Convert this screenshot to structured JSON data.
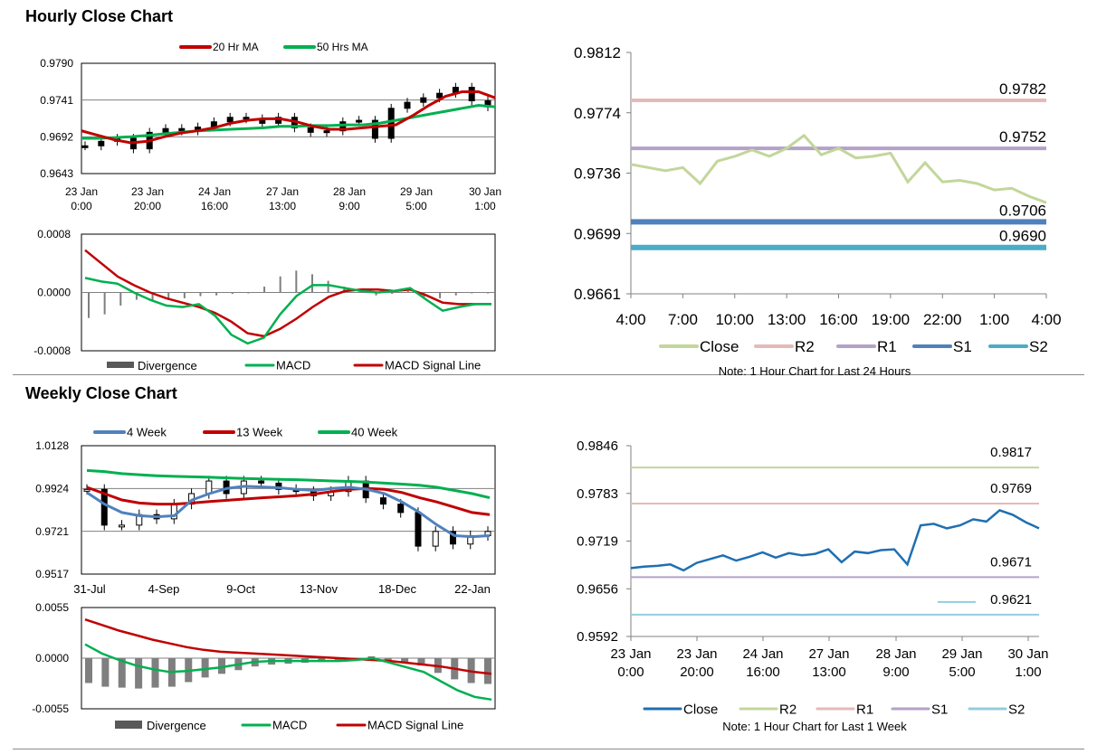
{
  "hourly": {
    "title": "Hourly Close Chart",
    "price_chart": {
      "type": "line",
      "legend": [
        {
          "label": "20 Hr MA",
          "color": "#c00000"
        },
        {
          "label": "50 Hrs MA",
          "color": "#00b050"
        }
      ],
      "ylim": [
        0.9643,
        0.979
      ],
      "yticks": [
        "0.9790",
        "0.9741",
        "0.9692",
        "0.9643"
      ],
      "xticks": [
        [
          "23 Jan",
          "0:00"
        ],
        [
          "23 Jan",
          "20:00"
        ],
        [
          "24 Jan",
          "16:00"
        ],
        [
          "27 Jan",
          "13:00"
        ],
        [
          "28 Jan",
          "9:00"
        ],
        [
          "29 Jan",
          "5:00"
        ],
        [
          "30 Jan",
          "1:00"
        ]
      ],
      "series": [
        {
          "name": "20 Hr MA",
          "color": "#c00000",
          "values": [
            0.97,
            0.9694,
            0.9688,
            0.9684,
            0.9686,
            0.9692,
            0.9697,
            0.97,
            0.9704,
            0.971,
            0.9714,
            0.9716,
            0.9716,
            0.9712,
            0.9706,
            0.9702,
            0.9702,
            0.9704,
            0.9706,
            0.9708,
            0.972,
            0.9734,
            0.9746,
            0.9752,
            0.9752,
            0.9744
          ]
        },
        {
          "name": "50 Hrs MA",
          "color": "#00b050",
          "values": [
            0.969,
            0.969,
            0.9691,
            0.9692,
            0.9694,
            0.9696,
            0.9698,
            0.97,
            0.9701,
            0.9702,
            0.9703,
            0.9704,
            0.9706,
            0.9706,
            0.9707,
            0.9707,
            0.9708,
            0.9708,
            0.971,
            0.9714,
            0.9718,
            0.9722,
            0.9726,
            0.973,
            0.9734,
            0.9732
          ]
        },
        {
          "name": "Price",
          "color": "#000000",
          "values": [
            0.968,
            0.9686,
            0.969,
            0.9676,
            0.9698,
            0.9703,
            0.97,
            0.9705,
            0.9712,
            0.9718,
            0.9716,
            0.971,
            0.9718,
            0.9704,
            0.9698,
            0.97,
            0.9712,
            0.9714,
            0.969,
            0.973,
            0.9738,
            0.9744,
            0.975,
            0.9758,
            0.974,
            0.9732
          ]
        }
      ]
    },
    "macd_chart": {
      "ylim": [
        -0.0008,
        0.0008
      ],
      "yticks": [
        "0.0008",
        "0.0000",
        "-0.0008"
      ],
      "legend": [
        {
          "label": "Divergence",
          "color": "#595959"
        },
        {
          "label": "MACD",
          "color": "#00b050"
        },
        {
          "label": "MACD Signal Line",
          "color": "#c00000"
        }
      ],
      "macd": [
        0.0002,
        0.00015,
        0.00012,
        0.0,
        -0.0001,
        -0.00018,
        -0.0002,
        -0.00016,
        -0.00032,
        -0.00058,
        -0.0007,
        -0.00062,
        -0.0003,
        -5e-05,
        0.0001,
        0.0001,
        6e-05,
        2e-05,
        0.0,
        2e-05,
        6e-05,
        -0.0001,
        -0.00025,
        -0.0002,
        -0.00016,
        -0.00016
      ],
      "signal": [
        0.00058,
        0.0004,
        0.00022,
        0.0001,
        0.0,
        -8e-05,
        -0.00014,
        -0.0002,
        -0.00028,
        -0.0004,
        -0.00056,
        -0.0006,
        -0.0005,
        -0.00036,
        -0.0002,
        -6e-05,
        2e-05,
        4e-05,
        4e-05,
        2e-05,
        4e-05,
        -4e-05,
        -0.00014,
        -0.00016,
        -0.00016,
        -0.00016
      ],
      "divergence": [
        -0.00035,
        -0.0003,
        -0.00018,
        -0.0001,
        -0.0001,
        -0.0001,
        -8e-05,
        -5e-05,
        -4e-05,
        -2e-05,
        0.0,
        8e-05,
        0.00022,
        0.0003,
        0.00025,
        0.00016,
        8e-05,
        2e-05,
        -4e-05,
        -2e-05,
        2e-05,
        -6e-05,
        -8e-05,
        -4e-05,
        -1e-05,
        -1e-05
      ]
    },
    "close_chart": {
      "type": "line",
      "ylim": [
        0.9661,
        0.9812
      ],
      "yticks": [
        "0.9812",
        "0.9774",
        "0.9736",
        "0.9699",
        "0.9661"
      ],
      "xticks": [
        "4:00",
        "7:00",
        "10:00",
        "13:00",
        "16:00",
        "19:00",
        "22:00",
        "1:00",
        "4:00"
      ],
      "close": [
        0.9742,
        0.974,
        0.9738,
        0.974,
        0.973,
        0.9744,
        0.9747,
        0.9751,
        0.9747,
        0.9752,
        0.976,
        0.9748,
        0.9752,
        0.9746,
        0.9747,
        0.9749,
        0.9731,
        0.9743,
        0.9731,
        0.9732,
        0.973,
        0.9726,
        0.9727,
        0.9722,
        0.9718
      ],
      "levels": [
        {
          "name": "R2",
          "value": 0.9782,
          "label": "0.9782",
          "color": "#e6b9b8",
          "width": 4
        },
        {
          "name": "R1",
          "value": 0.9752,
          "label": "0.9752",
          "color": "#b3a2c7",
          "width": 4
        },
        {
          "name": "S1",
          "value": 0.9706,
          "label": "0.9706",
          "color": "#4f81bd",
          "width": 6
        },
        {
          "name": "S2",
          "value": 0.969,
          "label": "0.9690",
          "color": "#4bacc6",
          "width": 6
        }
      ],
      "legend": [
        {
          "label": "Close",
          "color": "#c3d69b"
        },
        {
          "label": "R2",
          "color": "#e6b9b8"
        },
        {
          "label": "R1",
          "color": "#b3a2c7"
        },
        {
          "label": "S1",
          "color": "#4f81bd"
        },
        {
          "label": "S2",
          "color": "#4bacc6"
        }
      ],
      "note": "Note: 1 Hour Chart for Last 24 Hours"
    }
  },
  "weekly": {
    "title": "Weekly Close Chart",
    "price_chart": {
      "type": "line",
      "legend": [
        {
          "label": "4 Week",
          "color": "#4f81bd"
        },
        {
          "label": "13 Week",
          "color": "#c00000"
        },
        {
          "label": "40 Week",
          "color": "#00b050"
        }
      ],
      "ylim": [
        0.9517,
        1.0128
      ],
      "yticks": [
        "1.0128",
        "0.9924",
        "0.9721",
        "0.9517"
      ],
      "xticks": [
        "31-Jul",
        "4-Sep",
        "9-Oct",
        "13-Nov",
        "18-Dec",
        "22-Jan"
      ],
      "series": [
        {
          "name": "4 Week",
          "color": "#4f81bd",
          "values": [
            0.9905,
            0.985,
            0.981,
            0.9795,
            0.979,
            0.9795,
            0.987,
            0.99,
            0.9925,
            0.9935,
            0.9932,
            0.9928,
            0.992,
            0.9915,
            0.9925,
            0.993,
            0.992,
            0.99,
            0.986,
            0.981,
            0.975,
            0.97,
            0.9695,
            0.97
          ]
        },
        {
          "name": "13 Week",
          "color": "#c00000",
          "values": [
            0.993,
            0.99,
            0.987,
            0.9855,
            0.985,
            0.985,
            0.9855,
            0.9862,
            0.9868,
            0.9874,
            0.988,
            0.9885,
            0.989,
            0.9898,
            0.991,
            0.992,
            0.9925,
            0.992,
            0.9905,
            0.988,
            0.986,
            0.9835,
            0.981,
            0.98
          ]
        },
        {
          "name": "40 Week",
          "color": "#00b050",
          "values": [
            1.001,
            1.0005,
            0.9995,
            0.999,
            0.9985,
            0.9982,
            0.998,
            0.9978,
            0.9975,
            0.9972,
            0.997,
            0.9968,
            0.9966,
            0.9963,
            0.996,
            0.9958,
            0.9955,
            0.995,
            0.9945,
            0.994,
            0.993,
            0.9915,
            0.99,
            0.988
          ]
        },
        {
          "name": "Close",
          "color": "#000000",
          "values": [
            0.992,
            0.975,
            0.975,
            0.98,
            0.978,
            0.985,
            0.99,
            0.996,
            0.99,
            0.996,
            0.995,
            0.992,
            0.991,
            0.989,
            0.991,
            0.996,
            0.988,
            0.985,
            0.981,
            0.965,
            0.972,
            0.966,
            0.97,
            0.972
          ]
        }
      ]
    },
    "macd_chart": {
      "ylim": [
        -0.0055,
        0.0055
      ],
      "yticks": [
        "0.0055",
        "0.0000",
        "-0.0055"
      ],
      "legend": [
        {
          "label": "Divergence",
          "color": "#595959"
        },
        {
          "label": "MACD",
          "color": "#00b050"
        },
        {
          "label": "MACD Signal Line",
          "color": "#c00000"
        }
      ],
      "macd": [
        0.0015,
        0.0005,
        -0.0002,
        -0.0008,
        -0.0012,
        -0.0015,
        -0.0014,
        -0.0012,
        -0.001,
        -0.0007,
        -0.0004,
        -0.0003,
        -0.0003,
        -0.0003,
        -0.0003,
        -0.0003,
        -0.0002,
        0.0,
        -0.0005,
        -0.001,
        -0.0015,
        -0.0025,
        -0.0035,
        -0.0042,
        -0.0045
      ],
      "signal": [
        0.0042,
        0.0036,
        0.003,
        0.0025,
        0.002,
        0.0016,
        0.0012,
        0.0009,
        0.0007,
        0.0006,
        0.0005,
        0.0004,
        0.0003,
        0.0002,
        0.0001,
        0.0,
        -0.0001,
        -0.0002,
        -0.0003,
        -0.0005,
        -0.0007,
        -0.0009,
        -0.0012,
        -0.0015,
        -0.0017
      ],
      "divergence": [
        -0.0027,
        -0.0031,
        -0.0032,
        -0.0033,
        -0.0032,
        -0.0031,
        -0.0026,
        -0.0021,
        -0.0017,
        -0.0013,
        -0.0009,
        -0.0007,
        -0.0006,
        -0.0005,
        -0.0004,
        -0.0003,
        -0.0001,
        0.0002,
        -0.0002,
        -0.0005,
        -0.0008,
        -0.0016,
        -0.0023,
        -0.0027,
        -0.0028
      ]
    },
    "close_chart": {
      "type": "line",
      "ylim": [
        0.9592,
        0.9846
      ],
      "yticks": [
        "0.9846",
        "0.9783",
        "0.9719",
        "0.9656",
        "0.9592"
      ],
      "xticks": [
        [
          "23 Jan",
          "0:00"
        ],
        [
          "23 Jan",
          "20:00"
        ],
        [
          "24 Jan",
          "16:00"
        ],
        [
          "27 Jan",
          "13:00"
        ],
        [
          "28 Jan",
          "9:00"
        ],
        [
          "29 Jan",
          "5:00"
        ],
        [
          "30 Jan",
          "1:00"
        ]
      ],
      "close": [
        0.9683,
        0.9685,
        0.9686,
        0.9688,
        0.968,
        0.969,
        0.9695,
        0.97,
        0.9693,
        0.9698,
        0.9704,
        0.9697,
        0.9703,
        0.97,
        0.9702,
        0.9708,
        0.9691,
        0.9705,
        0.9703,
        0.9707,
        0.9708,
        0.9688,
        0.974,
        0.9742,
        0.9736,
        0.974,
        0.9748,
        0.9745,
        0.976,
        0.9754,
        0.9744,
        0.9736
      ],
      "levels": [
        {
          "name": "R2",
          "value": 0.9817,
          "label": "0.9817",
          "color": "#c3d69b",
          "width": 2
        },
        {
          "name": "R1",
          "value": 0.9769,
          "label": "0.9769",
          "color": "#e6b9b8",
          "width": 2
        },
        {
          "name": "S1",
          "value": 0.9671,
          "label": "0.9671",
          "color": "#b3a2c7",
          "width": 2
        },
        {
          "name": "S2",
          "value": 0.9621,
          "label": "0.9621",
          "color": "#93cddd",
          "width": 2
        }
      ],
      "legend": [
        {
          "label": "Close",
          "color": "#1f6fb2"
        },
        {
          "label": "R2",
          "color": "#c3d69b"
        },
        {
          "label": "R1",
          "color": "#e6b9b8"
        },
        {
          "label": "S1",
          "color": "#b3a2c7"
        },
        {
          "label": "S2",
          "color": "#93cddd"
        }
      ],
      "note": "Note: 1 Hour Chart for Last 1 Week"
    }
  }
}
